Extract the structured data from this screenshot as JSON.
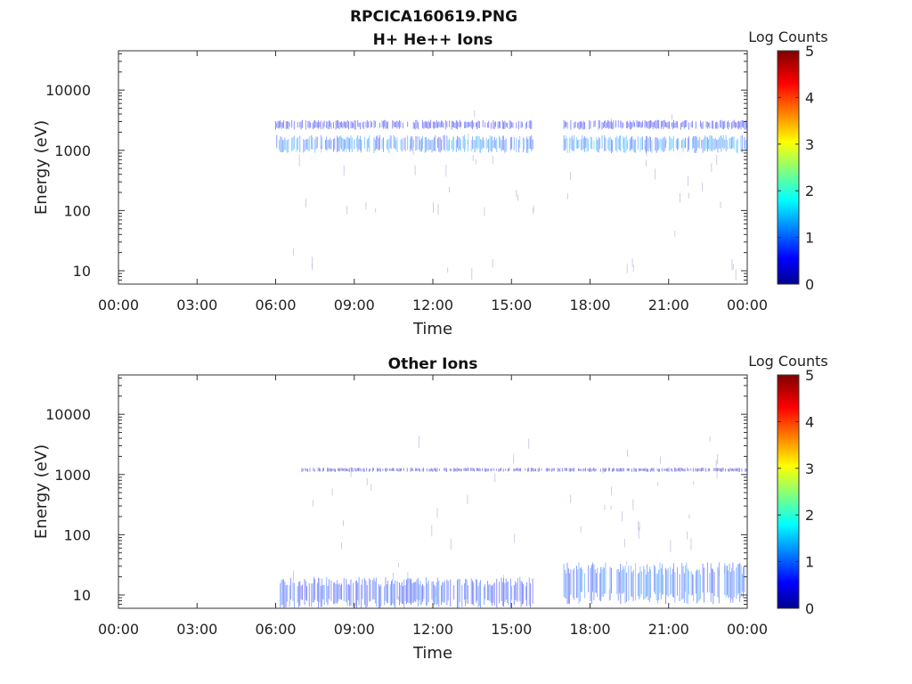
{
  "figure_title": "RPCICA160619.PNG",
  "colorbar": {
    "label": "Log Counts",
    "min": 0,
    "max": 5,
    "ticks": [
      "0",
      "1",
      "2",
      "3",
      "4",
      "5"
    ],
    "colormap": "jet",
    "colors": [
      "#00008f",
      "#0000ff",
      "#00ffff",
      "#ffff00",
      "#ff0000",
      "#800000"
    ]
  },
  "chart_data": [
    {
      "type": "heatmap",
      "title": "H+ He++ Ions",
      "xlabel": "Time",
      "ylabel": "Energy (eV)",
      "x_ticks": [
        "00:00",
        "03:00",
        "06:00",
        "09:00",
        "12:00",
        "15:00",
        "18:00",
        "21:00",
        "00:00"
      ],
      "xlim_hours": [
        0,
        24
      ],
      "y_scale": "log",
      "ylim": [
        6,
        45000
      ],
      "y_ticks": [
        "10",
        "100",
        "1000",
        "10000"
      ],
      "bands": [
        {
          "t_start": 6.0,
          "t_end": 15.85,
          "e_low": 900,
          "e_high": 1800,
          "log_counts": 1.2
        },
        {
          "t_start": 17.0,
          "t_end": 24.0,
          "e_low": 900,
          "e_high": 1800,
          "log_counts": 1.2
        },
        {
          "t_start": 6.0,
          "t_end": 15.85,
          "e_low": 2200,
          "e_high": 3200,
          "log_counts": 0.6
        },
        {
          "t_start": 17.0,
          "t_end": 24.0,
          "e_low": 2200,
          "e_high": 3200,
          "log_counts": 0.6
        }
      ],
      "data_gap": [
        15.85,
        17.0
      ]
    },
    {
      "type": "heatmap",
      "title": "Other Ions",
      "xlabel": "Time",
      "ylabel": "Energy (eV)",
      "x_ticks": [
        "00:00",
        "03:00",
        "06:00",
        "09:00",
        "12:00",
        "15:00",
        "18:00",
        "21:00",
        "00:00"
      ],
      "xlim_hours": [
        0,
        24
      ],
      "y_scale": "log",
      "ylim": [
        6,
        45000
      ],
      "y_ticks": [
        "10",
        "100",
        "1000",
        "10000"
      ],
      "bands": [
        {
          "t_start": 6.0,
          "t_end": 15.85,
          "e_low": 6,
          "e_high": 20,
          "log_counts": 0.8
        },
        {
          "t_start": 17.0,
          "t_end": 24.0,
          "e_low": 7,
          "e_high": 35,
          "log_counts": 1.0
        },
        {
          "t_start": 7.0,
          "t_end": 24.0,
          "e_low": 1100,
          "e_high": 1300,
          "log_counts": 0.3
        }
      ],
      "data_gap": [
        15.85,
        17.0
      ]
    }
  ]
}
